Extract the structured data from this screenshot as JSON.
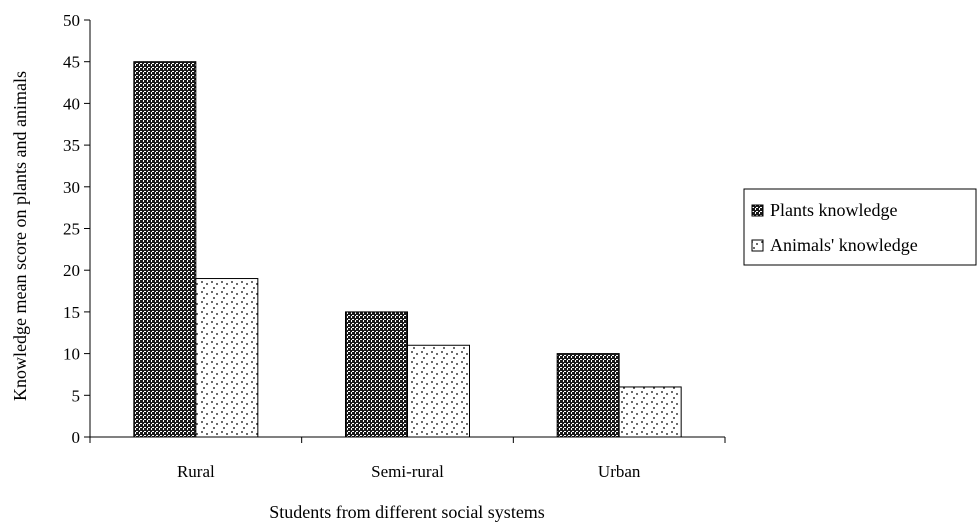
{
  "chart_data": {
    "type": "bar",
    "categories": [
      "Rural",
      "Semi-rural",
      "Urban"
    ],
    "series": [
      {
        "name": "Plants knowledge",
        "values": [
          45,
          15,
          10
        ],
        "pattern": "dense-dots",
        "color": "#1a1a1a"
      },
      {
        "name": "Animals' knowledge",
        "values": [
          19,
          11,
          6
        ],
        "pattern": "sparse-dots",
        "color": "#ffffff"
      }
    ],
    "title": "",
    "xlabel": "Students from different social systems",
    "ylabel": "Knowledge mean score on plants and animals",
    "ylim": [
      0,
      50
    ],
    "yticks": [
      0,
      5,
      10,
      15,
      20,
      25,
      30,
      35,
      40,
      45,
      50
    ],
    "grid": false,
    "legend_position": "right"
  }
}
